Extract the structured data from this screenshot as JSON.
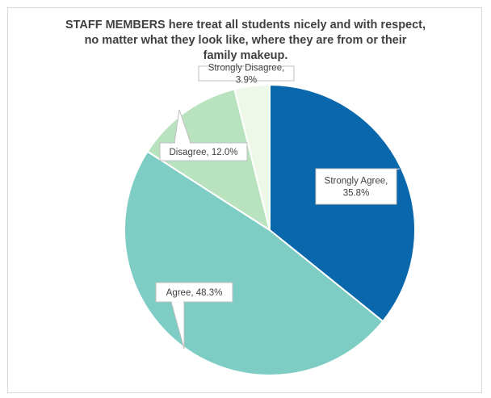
{
  "chart_data": {
    "type": "pie",
    "title": "STAFF MEMBERS here treat all students nicely and with respect, no matter what they look like, where they are from or their family makeup.",
    "title_lines": [
      "STAFF MEMBERS here treat all students nicely and with respect,",
      "no matter what they look like, where they are from or their",
      "family makeup."
    ],
    "start_angle_deg": 0,
    "direction": "clockwise",
    "slices": [
      {
        "label": "Strongly Agree",
        "value": 35.8,
        "display": "Strongly Agree,",
        "display2": "35.8%",
        "color": "#0967ab"
      },
      {
        "label": "Agree",
        "value": 48.3,
        "display": "Agree, 48.3%",
        "display2": "",
        "color": "#7ecdc4"
      },
      {
        "label": "Disagree",
        "value": 12.0,
        "display": "Disagree, 12.0%",
        "display2": "",
        "color": "#b9e3bf"
      },
      {
        "label": "Strongly Disagree",
        "value": 3.9,
        "display": "Strongly Disagree,",
        "display2": "3.9%",
        "color": "#edf8e9"
      }
    ]
  }
}
